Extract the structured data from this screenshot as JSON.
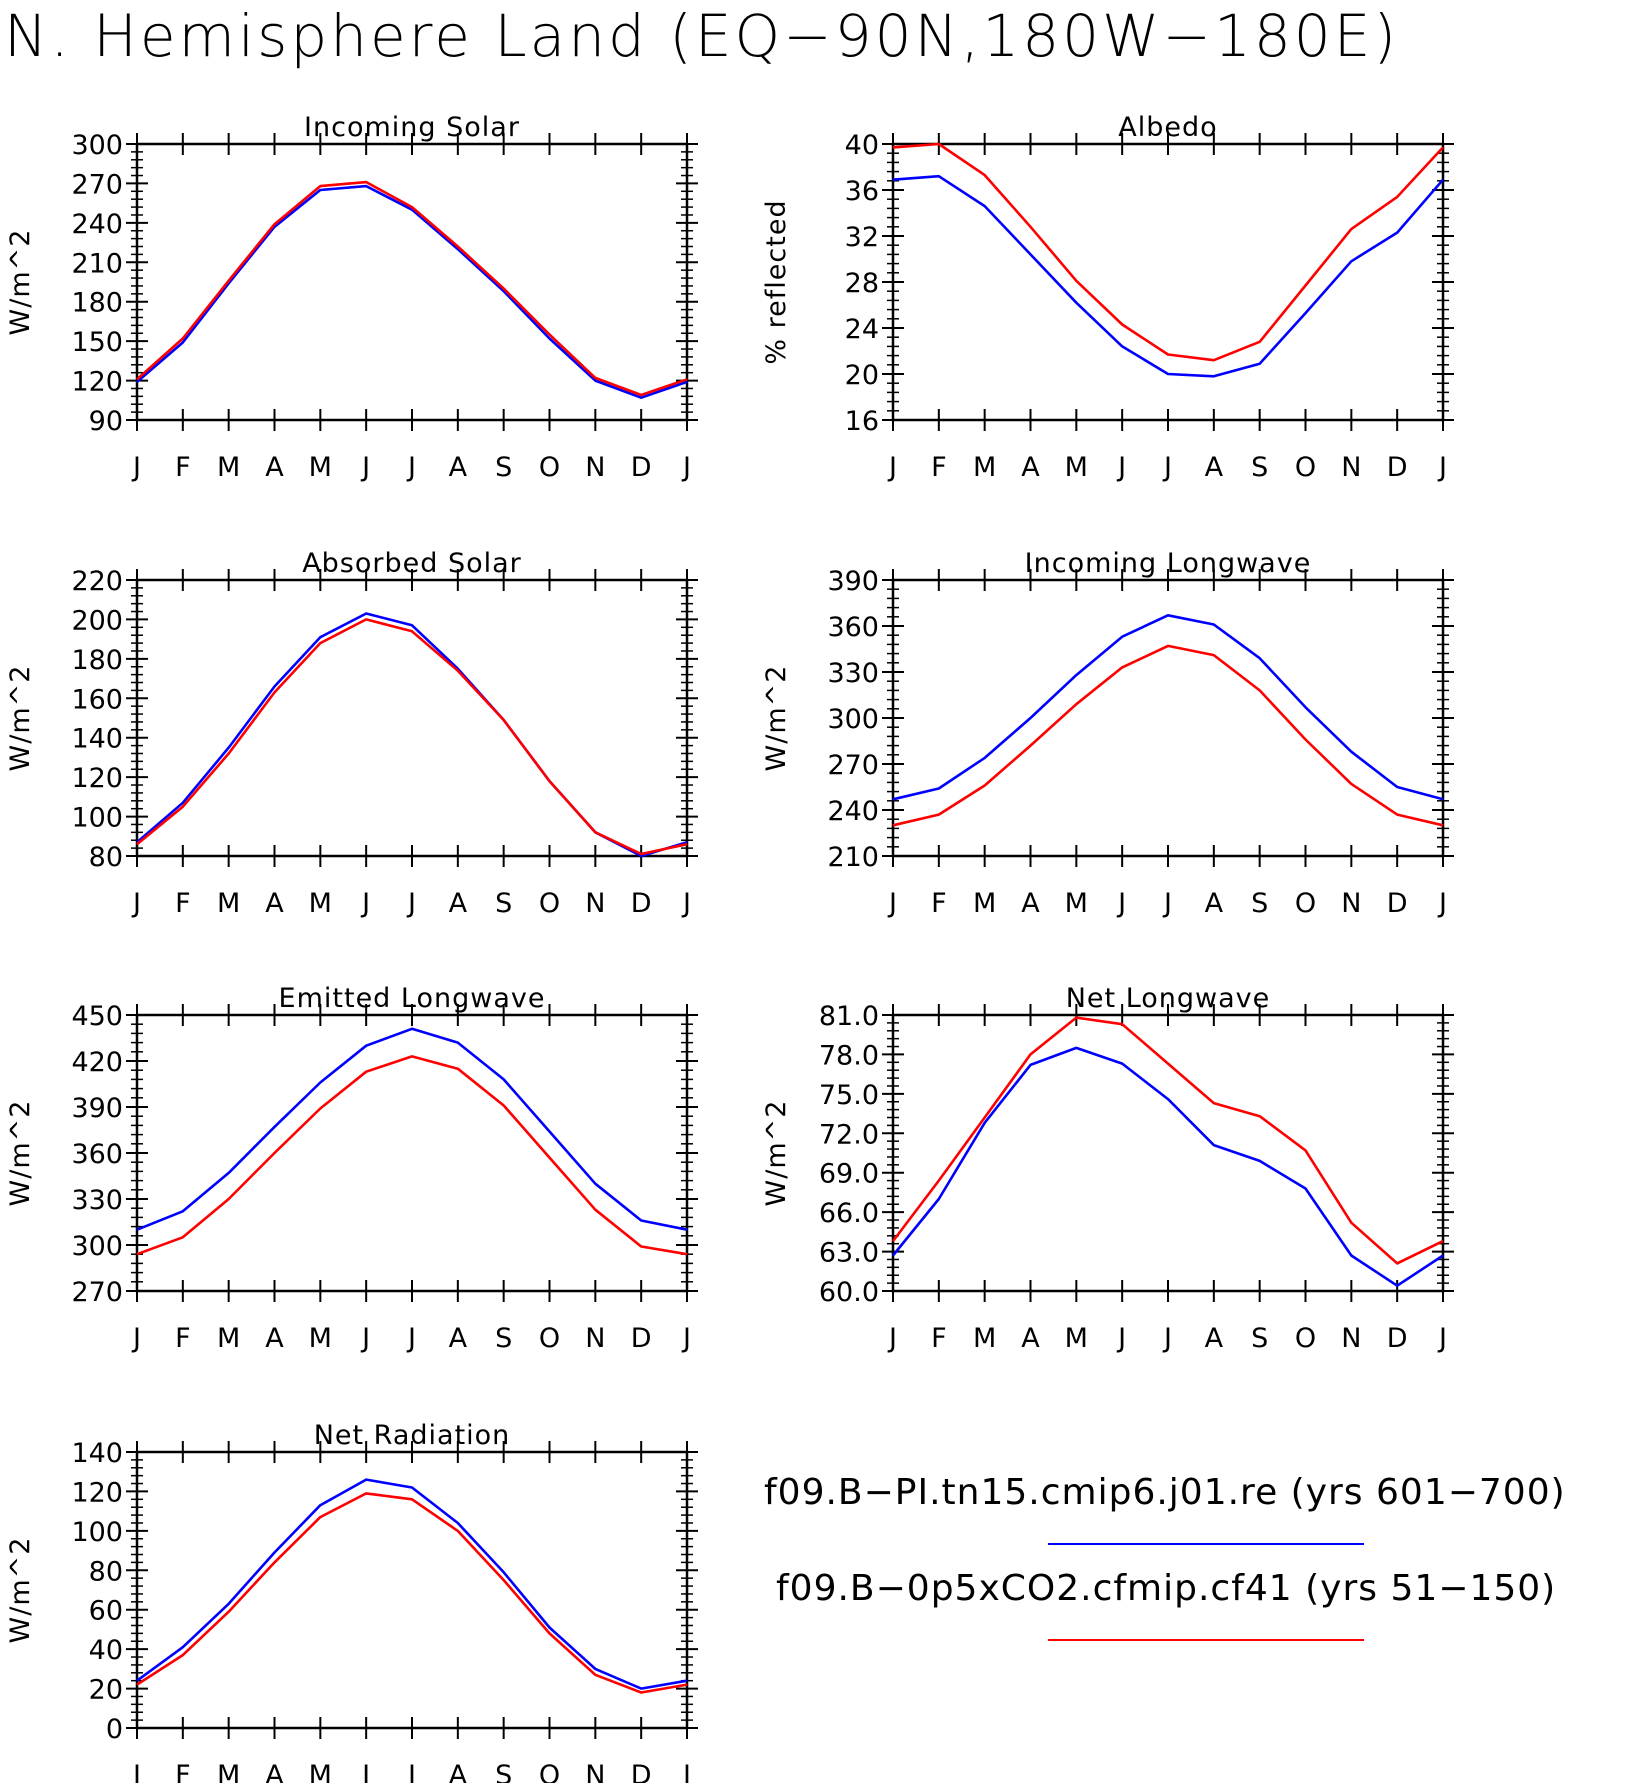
{
  "title": "N. Hemisphere Land (EQ−90N,180W−180E)",
  "colors": {
    "series1": "#0000ff",
    "series2": "#ff0000",
    "frame": "#000000"
  },
  "legend": [
    {
      "label": "f09.B−PI.tn15.cmip6.j01.re (yrs 601−700)",
      "color": "#0000ff"
    },
    {
      "label": "f09.B−0p5xCO2.cfmip.cf41 (yrs 51−150)",
      "color": "#ff0000"
    }
  ],
  "chart_data": [
    {
      "type": "line",
      "title": "Incoming Solar",
      "ylabel": "W/m^2",
      "categories": [
        "J",
        "F",
        "M",
        "A",
        "M",
        "J",
        "J",
        "A",
        "S",
        "O",
        "N",
        "D",
        "J"
      ],
      "ylim": [
        90,
        300
      ],
      "yticks": [
        "90",
        "120",
        "150",
        "180",
        "210",
        "240",
        "270",
        "300"
      ],
      "series": [
        {
          "color": "#0000ff",
          "values": [
            119,
            149,
            194,
            237,
            265,
            268,
            250,
            220,
            188,
            152,
            120,
            107,
            119
          ]
        },
        {
          "color": "#ff0000",
          "values": [
            121,
            152,
            196,
            239,
            268,
            271,
            252,
            222,
            190,
            155,
            122,
            109,
            121
          ]
        }
      ]
    },
    {
      "type": "line",
      "title": "Albedo",
      "ylabel": "% reflected",
      "categories": [
        "J",
        "F",
        "M",
        "A",
        "M",
        "J",
        "J",
        "A",
        "S",
        "O",
        "N",
        "D",
        "J"
      ],
      "ylim": [
        16,
        40
      ],
      "yticks": [
        "16",
        "20",
        "24",
        "28",
        "32",
        "36",
        "40"
      ],
      "series": [
        {
          "color": "#0000ff",
          "values": [
            36.9,
            37.2,
            34.6,
            30.4,
            26.2,
            22.4,
            20.0,
            19.8,
            20.9,
            25.3,
            29.8,
            32.3,
            36.9
          ]
        },
        {
          "color": "#ff0000",
          "values": [
            39.7,
            40.0,
            37.3,
            32.8,
            28.1,
            24.3,
            21.7,
            21.2,
            22.8,
            27.7,
            32.6,
            35.4,
            39.7
          ]
        }
      ]
    },
    {
      "type": "line",
      "title": "Absorbed Solar",
      "ylabel": "W/m^2",
      "categories": [
        "J",
        "F",
        "M",
        "A",
        "M",
        "J",
        "J",
        "A",
        "S",
        "O",
        "N",
        "D",
        "J"
      ],
      "ylim": [
        80,
        220
      ],
      "yticks": [
        "80",
        "100",
        "120",
        "140",
        "160",
        "180",
        "200",
        "220"
      ],
      "series": [
        {
          "color": "#0000ff",
          "values": [
            87,
            107,
            135,
            166,
            191,
            203,
            197,
            175,
            149,
            118,
            92,
            80,
            87
          ]
        },
        {
          "color": "#ff0000",
          "values": [
            86,
            105,
            132,
            163,
            188,
            200,
            194,
            174,
            149,
            118,
            92,
            81,
            86
          ]
        }
      ]
    },
    {
      "type": "line",
      "title": "Incoming Longwave",
      "ylabel": "W/m^2",
      "categories": [
        "J",
        "F",
        "M",
        "A",
        "M",
        "J",
        "J",
        "A",
        "S",
        "O",
        "N",
        "D",
        "J"
      ],
      "ylim": [
        210,
        390
      ],
      "yticks": [
        "210",
        "240",
        "270",
        "300",
        "330",
        "360",
        "390"
      ],
      "series": [
        {
          "color": "#0000ff",
          "values": [
            247,
            254,
            274,
            300,
            328,
            353,
            367,
            361,
            339,
            307,
            278,
            255,
            247
          ]
        },
        {
          "color": "#ff0000",
          "values": [
            230,
            237,
            256,
            282,
            309,
            333,
            347,
            341,
            318,
            286,
            257,
            237,
            230
          ]
        }
      ]
    },
    {
      "type": "line",
      "title": "Emitted Longwave",
      "ylabel": "W/m^2",
      "categories": [
        "J",
        "F",
        "M",
        "A",
        "M",
        "J",
        "J",
        "A",
        "S",
        "O",
        "N",
        "D",
        "J"
      ],
      "ylim": [
        270,
        450
      ],
      "yticks": [
        "270",
        "300",
        "330",
        "360",
        "390",
        "420",
        "450"
      ],
      "series": [
        {
          "color": "#0000ff",
          "values": [
            310,
            322,
            347,
            377,
            406,
            430,
            441,
            432,
            408,
            374,
            340,
            316,
            310
          ]
        },
        {
          "color": "#ff0000",
          "values": [
            294,
            305,
            330,
            360,
            389,
            413,
            423,
            415,
            391,
            357,
            323,
            299,
            294
          ]
        }
      ]
    },
    {
      "type": "line",
      "title": "Net Longwave",
      "ylabel": "W/m^2",
      "categories": [
        "J",
        "F",
        "M",
        "A",
        "M",
        "J",
        "J",
        "A",
        "S",
        "O",
        "N",
        "D",
        "J"
      ],
      "ylim": [
        60,
        81
      ],
      "yticks": [
        "60.0",
        "63.0",
        "66.0",
        "69.0",
        "72.0",
        "75.0",
        "78.0",
        "81.0"
      ],
      "series": [
        {
          "color": "#0000ff",
          "values": [
            62.7,
            67.0,
            72.8,
            77.2,
            78.5,
            77.3,
            74.6,
            71.1,
            69.9,
            67.8,
            62.7,
            60.4,
            62.7
          ]
        },
        {
          "color": "#ff0000",
          "values": [
            63.8,
            68.4,
            73.2,
            78.0,
            80.8,
            80.3,
            77.3,
            74.3,
            73.3,
            70.7,
            65.2,
            62.1,
            63.8
          ]
        }
      ]
    },
    {
      "type": "line",
      "title": "Net Radiation",
      "ylabel": "W/m^2",
      "categories": [
        "J",
        "F",
        "M",
        "A",
        "M",
        "J",
        "J",
        "A",
        "S",
        "O",
        "N",
        "D",
        "J"
      ],
      "ylim": [
        0,
        140
      ],
      "yticks": [
        "0",
        "20",
        "40",
        "60",
        "80",
        "100",
        "120",
        "140"
      ],
      "series": [
        {
          "color": "#0000ff",
          "values": [
            24,
            41,
            63,
            89,
            113,
            126,
            122,
            104,
            79,
            51,
            30,
            20,
            24
          ]
        },
        {
          "color": "#ff0000",
          "values": [
            22,
            37,
            59,
            84,
            107,
            119,
            116,
            100,
            75,
            48,
            27,
            18,
            22
          ]
        }
      ]
    }
  ]
}
